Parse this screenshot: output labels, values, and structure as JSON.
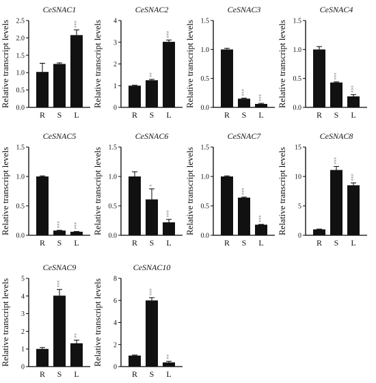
{
  "figure": {
    "ylabel": "Relative transcript levels",
    "bar_color": "#111111",
    "significance_color": "#8a8a8a"
  },
  "chart_data": [
    {
      "type": "bar",
      "title": "CeSNAC1",
      "categories": [
        "R",
        "S",
        "L"
      ],
      "values": [
        1.02,
        1.25,
        2.08
      ],
      "errors": [
        0.25,
        0.03,
        0.15
      ],
      "significance": [
        "",
        "",
        "***"
      ],
      "ylim": [
        0,
        2.5
      ],
      "yticks": [
        "0.0",
        "0.5",
        "1.0",
        "1.5",
        "2.0",
        "2.5"
      ],
      "ylabel": "Relative transcript levels"
    },
    {
      "type": "bar",
      "title": "CeSNAC2",
      "categories": [
        "R",
        "S",
        "L"
      ],
      "values": [
        1.0,
        1.25,
        3.02
      ],
      "errors": [
        0.02,
        0.04,
        0.08
      ],
      "significance": [
        "",
        "**",
        "***"
      ],
      "ylim": [
        0,
        4
      ],
      "yticks": [
        "0",
        "1",
        "2",
        "3",
        "4"
      ],
      "ylabel": "Relative transcript levels"
    },
    {
      "type": "bar",
      "title": "CeSNAC3",
      "categories": [
        "R",
        "S",
        "L"
      ],
      "values": [
        1.0,
        0.15,
        0.06
      ],
      "errors": [
        0.02,
        0.01,
        0.01
      ],
      "significance": [
        "",
        "***",
        "***"
      ],
      "ylim": [
        0,
        1.5
      ],
      "yticks": [
        "0.0",
        "0.5",
        "1.0",
        "1.5"
      ],
      "ylabel": "Relative transcript levels"
    },
    {
      "type": "bar",
      "title": "CeSNAC4",
      "categories": [
        "R",
        "S",
        "L"
      ],
      "values": [
        1.0,
        0.43,
        0.19
      ],
      "errors": [
        0.05,
        0.01,
        0.03
      ],
      "significance": [
        "",
        "***",
        "***"
      ],
      "ylim": [
        0,
        1.5
      ],
      "yticks": [
        "0.0",
        "0.5",
        "1.0",
        "1.5"
      ],
      "ylabel": "Relative transcript levels"
    },
    {
      "type": "bar",
      "title": "CeSNAC5",
      "categories": [
        "R",
        "S",
        "L"
      ],
      "values": [
        1.0,
        0.08,
        0.06
      ],
      "errors": [
        0.01,
        0.005,
        0.005
      ],
      "significance": [
        "",
        "***",
        "***"
      ],
      "ylim": [
        0,
        1.5
      ],
      "yticks": [
        "0.0",
        "0.5",
        "1.0",
        "1.5"
      ],
      "ylabel": "Relative transcript levels"
    },
    {
      "type": "bar",
      "title": "CeSNAC6",
      "categories": [
        "R",
        "S",
        "L"
      ],
      "values": [
        1.0,
        0.61,
        0.22
      ],
      "errors": [
        0.08,
        0.18,
        0.05
      ],
      "significance": [
        "",
        "*",
        "***"
      ],
      "ylim": [
        0,
        1.5
      ],
      "yticks": [
        "0.0",
        "0.5",
        "1.0",
        "1.5"
      ],
      "ylabel": "Relative transcript levels"
    },
    {
      "type": "bar",
      "title": "CeSNAC7",
      "categories": [
        "R",
        "S",
        "L"
      ],
      "values": [
        1.0,
        0.64,
        0.18
      ],
      "errors": [
        0.01,
        0.01,
        0.005
      ],
      "significance": [
        "",
        "***",
        "***"
      ],
      "ylim": [
        0,
        1.5
      ],
      "yticks": [
        "0.0",
        "0.5",
        "1.0",
        "1.5"
      ],
      "ylabel": "Relative transcript levels"
    },
    {
      "type": "bar",
      "title": "CeSNAC8",
      "categories": [
        "R",
        "S",
        "L"
      ],
      "values": [
        1.0,
        11.1,
        8.5
      ],
      "errors": [
        0.05,
        0.6,
        0.4
      ],
      "significance": [
        "",
        "***",
        "***"
      ],
      "ylim": [
        0,
        15
      ],
      "yticks": [
        "0",
        "5",
        "10",
        "15"
      ],
      "ylabel": "Relative transcript levels"
    },
    {
      "type": "bar",
      "title": "CeSNAC9",
      "categories": [
        "R",
        "S",
        "L"
      ],
      "values": [
        1.0,
        4.02,
        1.32
      ],
      "errors": [
        0.08,
        0.35,
        0.18
      ],
      "significance": [
        "",
        "***",
        "**"
      ],
      "ylim": [
        0,
        5
      ],
      "yticks": [
        "0",
        "1",
        "2",
        "3",
        "4",
        "5"
      ],
      "ylabel": "Relative transcript levels"
    },
    {
      "type": "bar",
      "title": "CeSNAC10",
      "categories": [
        "R",
        "S",
        "L"
      ],
      "values": [
        1.0,
        6.0,
        0.38
      ],
      "errors": [
        0.05,
        0.25,
        0.1
      ],
      "significance": [
        "",
        "***",
        "**"
      ],
      "ylim": [
        0,
        8
      ],
      "yticks": [
        "0",
        "2",
        "4",
        "6",
        "8"
      ],
      "ylabel": "Relative transcript levels"
    }
  ]
}
